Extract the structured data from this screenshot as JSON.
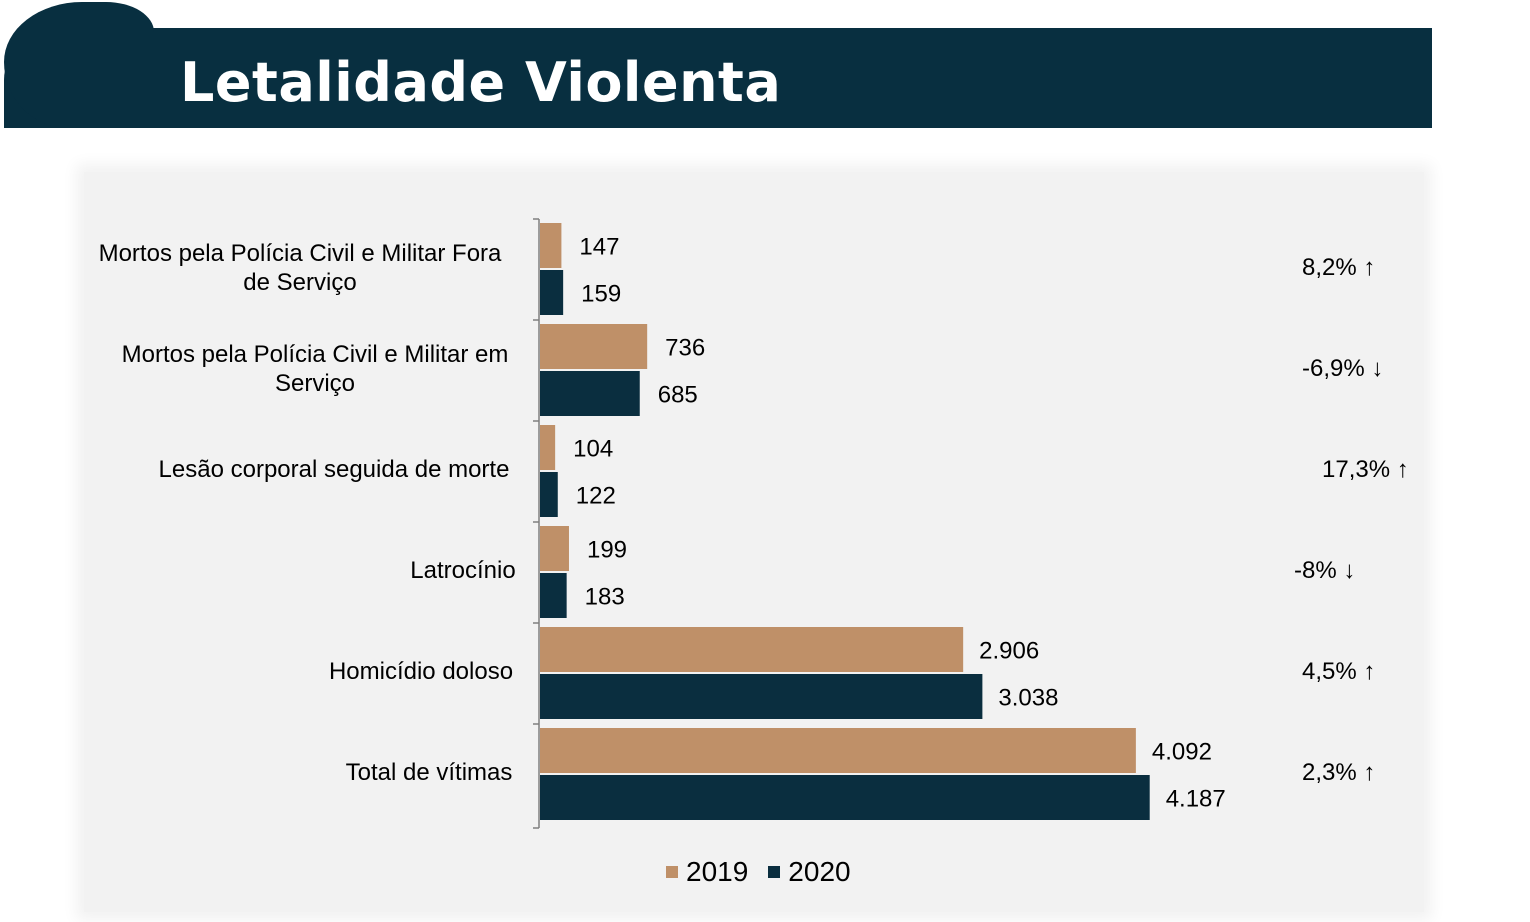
{
  "header": {
    "title": "Letalidade Violenta"
  },
  "colors": {
    "banner": "#082f40",
    "series_2019": "#bf9068",
    "series_2020": "#0a2e3f",
    "panel": "#f2f2f2"
  },
  "chart_data": {
    "type": "bar",
    "orientation": "horizontal",
    "categories": [
      [
        "Mortos pela Polícia Civil e Militar Fora",
        "de Serviço"
      ],
      [
        "Mortos pela Polícia Civil e Militar em",
        "Serviço"
      ],
      [
        "Lesão corporal seguida de morte"
      ],
      [
        "Latrocínio"
      ],
      [
        "Homicídio doloso"
      ],
      [
        "Total de vítimas"
      ]
    ],
    "series": [
      {
        "name": "2019",
        "values": [
          147,
          736,
          104,
          199,
          2906,
          4092
        ],
        "labels": [
          "147",
          "736",
          "104",
          "199",
          "2.906",
          "4.092"
        ],
        "color": "#bf9068"
      },
      {
        "name": "2020",
        "values": [
          159,
          685,
          122,
          183,
          3038,
          4187
        ],
        "labels": [
          "159",
          "685",
          "122",
          "183",
          "3.038",
          "4.187"
        ],
        "color": "#0a2e3f"
      }
    ],
    "changes": [
      "8,2% ↑",
      "-6,9% ↓",
      "17,3% ↑",
      "-8% ↓",
      "4,5% ↑",
      "2,3% ↑"
    ],
    "xlim": [
      0,
      4450
    ],
    "legend_position": "bottom",
    "grid": false
  }
}
